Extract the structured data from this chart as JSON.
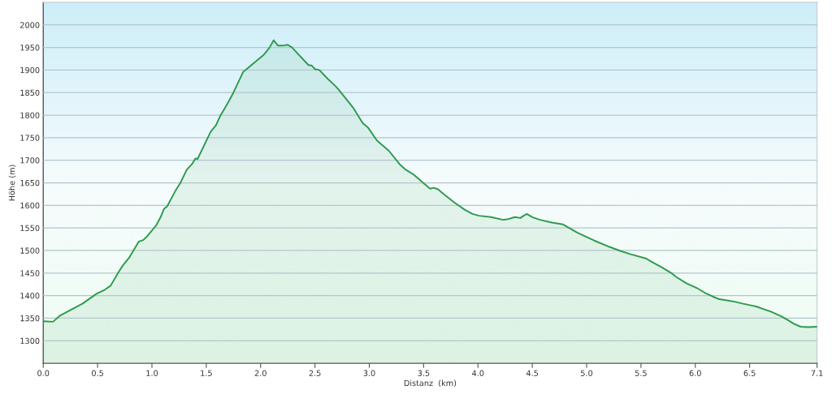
{
  "chart_data": {
    "type": "area",
    "xlabel": "Distanz  (km)",
    "ylabel": "Höhe (m)",
    "color": "#2e9a4e",
    "x": [
      0,
      0.09,
      0.15,
      0.29,
      0.36,
      0.49,
      0.56,
      0.62,
      0.69,
      0.73,
      0.79,
      0.88,
      0.92,
      0.95,
      1.04,
      1.08,
      1.11,
      1.14,
      1.22,
      1.26,
      1.32,
      1.37,
      1.4,
      1.42,
      1.48,
      1.54,
      1.59,
      1.63,
      1.66,
      1.71,
      1.75,
      1.84,
      1.86,
      1.94,
      2.03,
      2.08,
      2.12,
      2.16,
      2.2,
      2.25,
      2.29,
      2.35,
      2.44,
      2.47,
      2.5,
      2.54,
      2.62,
      2.69,
      2.72,
      2.75,
      2.85,
      2.94,
      2.99,
      3.07,
      3.18,
      3.28,
      3.33,
      3.41,
      3.5,
      3.56,
      3.59,
      3.63,
      3.69,
      3.78,
      3.88,
      3.95,
      4.01,
      4.12,
      4.23,
      4.27,
      4.34,
      4.39,
      4.42,
      4.45,
      4.5,
      4.57,
      4.68,
      4.78,
      4.91,
      5.0,
      5.07,
      5.21,
      5.31,
      5.4,
      5.55,
      5.59,
      5.69,
      5.78,
      5.82,
      5.92,
      6.02,
      6.09,
      6.16,
      6.22,
      6.28,
      6.37,
      6.44,
      6.52,
      6.56,
      6.63,
      6.7,
      6.79,
      6.85,
      6.91,
      6.97,
      7.04,
      7.12
    ],
    "values": [
      1343,
      1342,
      1355,
      1373,
      1382,
      1404,
      1412,
      1422,
      1451,
      1466,
      1484,
      1520,
      1523,
      1530,
      1556,
      1574,
      1592,
      1598,
      1634,
      1649,
      1679,
      1692,
      1704,
      1703,
      1733,
      1763,
      1778,
      1799,
      1811,
      1832,
      1850,
      1896,
      1900,
      1916,
      1934,
      1949,
      1966,
      1954,
      1954,
      1956,
      1950,
      1934,
      1911,
      1910,
      1902,
      1900,
      1880,
      1864,
      1856,
      1847,
      1817,
      1782,
      1772,
      1744,
      1721,
      1691,
      1680,
      1668,
      1649,
      1637,
      1639,
      1636,
      1624,
      1607,
      1590,
      1581,
      1577,
      1574,
      1568,
      1569,
      1574,
      1572,
      1577,
      1581,
      1574,
      1568,
      1562,
      1558,
      1540,
      1530,
      1522,
      1508,
      1499,
      1492,
      1482,
      1476,
      1463,
      1450,
      1442,
      1427,
      1416,
      1406,
      1398,
      1392,
      1390,
      1386,
      1382,
      1378,
      1376,
      1370,
      1364,
      1354,
      1346,
      1337,
      1331,
      1330,
      1331
    ],
    "xlim": [
      0,
      7.12
    ],
    "ylim": [
      1250,
      2050
    ],
    "xticks": [
      {
        "value": 0,
        "label": "0.0"
      },
      0.5,
      {
        "value": 1,
        "label": "1.0"
      },
      1.5,
      {
        "value": 2,
        "label": "2.0"
      },
      2.5,
      {
        "value": 3,
        "label": "3.0"
      },
      3.5,
      {
        "value": 4,
        "label": "4.0"
      },
      4.5,
      {
        "value": 5,
        "label": "5.0"
      },
      5.5,
      {
        "value": 6,
        "label": "6.0"
      },
      6.5,
      {
        "value": 7.12,
        "label": "7.1"
      }
    ],
    "yticks": [
      1300,
      1350,
      1400,
      1450,
      1500,
      1550,
      1600,
      1650,
      1700,
      1750,
      1800,
      1850,
      1900,
      1950,
      2000
    ],
    "grid": "y",
    "legend": false,
    "marker": "none",
    "line_style": "solid"
  }
}
